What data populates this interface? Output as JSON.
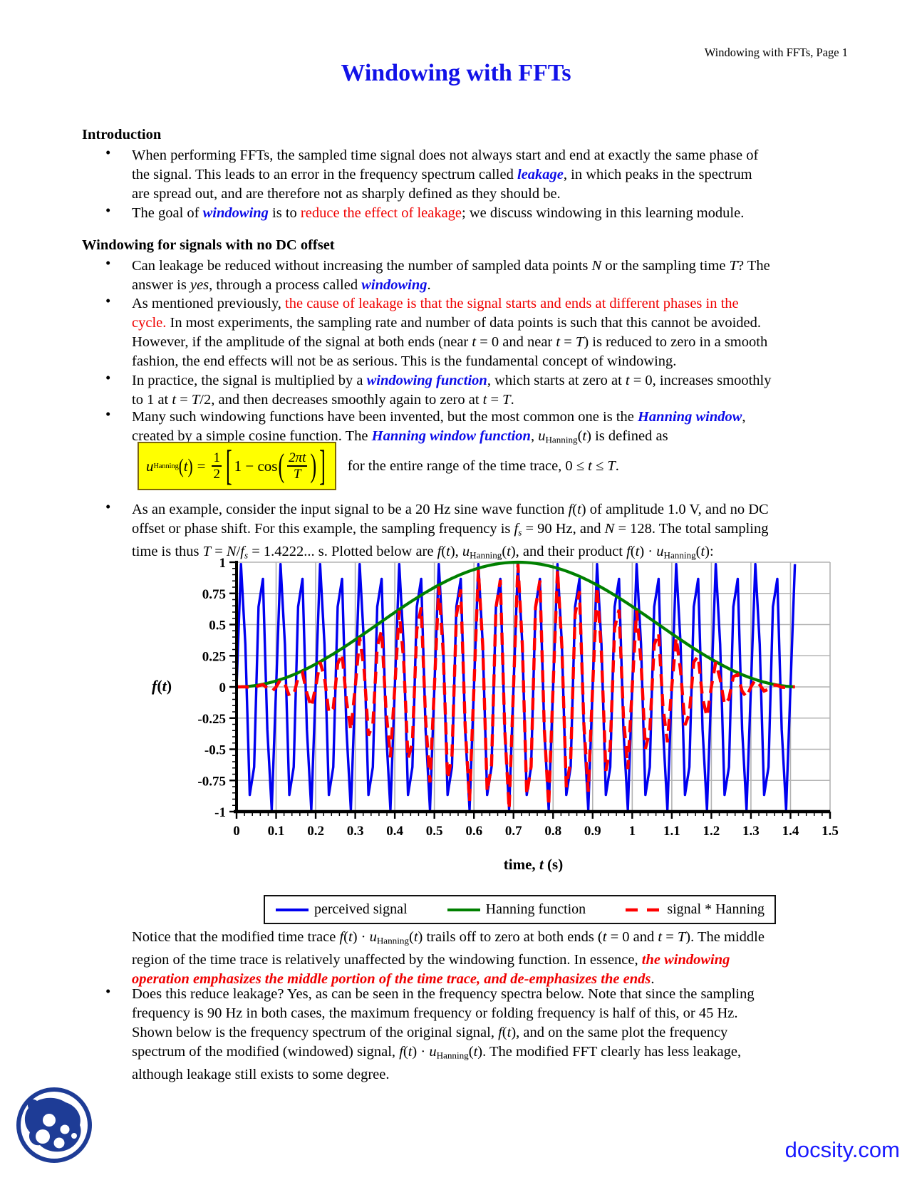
{
  "meta": {
    "bullet_char": "•",
    "accent_blue": "#0c0ce8",
    "accent_red": "#f00000",
    "highlight_yellow": "#ffff00",
    "logo_blue": "#1e3c96"
  },
  "header": {
    "text": "Windowing with FFTs, Page 1"
  },
  "title": "Windowing with FFTs",
  "sections": [
    {
      "heading": "Introduction",
      "bullets": [
        [
          [
            "When performing FFTs, the sampled time signal does not always start and end at exactly the same phase of",
            "n"
          ],
          [
            "",
            "br"
          ],
          [
            "the signal. This leads to an error in the frequency spectrum called ",
            "n"
          ],
          [
            "leakage",
            "v"
          ],
          [
            ", in which peaks in the spectrum",
            "n"
          ],
          [
            "",
            "br"
          ],
          [
            "are spread out, and are therefore not as sharply defined as they should be.",
            "n"
          ]
        ],
        [
          [
            "The goal of ",
            "n"
          ],
          [
            "windowing",
            "v"
          ],
          [
            " is to ",
            "n"
          ],
          [
            "reduce the effect of leakage",
            "r"
          ],
          [
            "; we discuss windowing in this learning module.",
            "n"
          ]
        ]
      ]
    },
    {
      "heading": "Windowing for signals with no DC offset",
      "bullets": [
        [
          [
            "Can leakage be reduced without increasing the number of sampled data points ",
            "n"
          ],
          [
            "N",
            "i"
          ],
          [
            " or the sampling time ",
            "n"
          ],
          [
            "T",
            "i"
          ],
          [
            "? The",
            "n"
          ],
          [
            "",
            "br"
          ],
          [
            "answer is ",
            "n"
          ],
          [
            "yes",
            "i"
          ],
          [
            ", through a process called ",
            "n"
          ],
          [
            "windowing",
            "v"
          ],
          [
            ".",
            "n"
          ]
        ],
        [
          [
            "As mentioned previously, ",
            "n"
          ],
          [
            "the cause of leakage is that the signal starts and ends at different phases in the",
            "r"
          ],
          [
            "",
            "br"
          ],
          [
            "cycle.",
            "r"
          ],
          [
            " In most experiments, the sampling rate and number of data points is such that this cannot be avoided.",
            "n"
          ],
          [
            "",
            "br"
          ],
          [
            "However, if the amplitude of the signal at both ends (near ",
            "n"
          ],
          [
            "t",
            "i"
          ],
          [
            " = 0 and near ",
            "n"
          ],
          [
            "t",
            "i"
          ],
          [
            " = ",
            "n"
          ],
          [
            "T",
            "i"
          ],
          [
            ") is reduced to zero in a smooth",
            "n"
          ],
          [
            "",
            "br"
          ],
          [
            "fashion, the end effects will not be as serious. This is the fundamental concept of windowing.",
            "n"
          ]
        ],
        [
          [
            "In practice, the signal is multiplied by a ",
            "n"
          ],
          [
            "windowing function",
            "v"
          ],
          [
            ", which starts at zero at ",
            "n"
          ],
          [
            "t",
            "i"
          ],
          [
            " = 0, increases smoothly",
            "n"
          ],
          [
            "",
            "br"
          ],
          [
            "to 1 at ",
            "n"
          ],
          [
            "t",
            "i"
          ],
          [
            " = ",
            "n"
          ],
          [
            "T",
            "i"
          ],
          [
            "/2, and then decreases smoothly again to zero at ",
            "n"
          ],
          [
            "t",
            "i"
          ],
          [
            " = ",
            "n"
          ],
          [
            "T",
            "i"
          ],
          [
            ".",
            "n"
          ]
        ],
        [
          [
            "Many such windowing functions have been invented, but the most common one is the ",
            "n"
          ],
          [
            "Hanning window",
            "v"
          ],
          [
            ",",
            "n"
          ],
          [
            "",
            "br"
          ],
          [
            "created by a simple cosine function. The ",
            "n"
          ],
          [
            "Hanning window function",
            "v"
          ],
          [
            ", ",
            "n"
          ],
          [
            "u",
            "i"
          ],
          [
            "Hanning",
            "s"
          ],
          [
            "(",
            "n"
          ],
          [
            "t",
            "i"
          ],
          [
            ") is defined as",
            "n"
          ]
        ]
      ]
    }
  ],
  "formula": {
    "var": "u",
    "sub": "Hanning",
    "lparen_arg": "(",
    "arg": "t",
    "rparen_arg": ")",
    "equals": "=",
    "num1": "1",
    "den1": "2",
    "lbracket": "[",
    "one_minus_cos": "1 − cos",
    "lparen": "(",
    "num2": "2πt",
    "den2": "T",
    "rparen": ")",
    "rbracket": "]",
    "side_runs": [
      [
        "for the entire range of the time trace, 0 ≤ ",
        "n"
      ],
      [
        "t",
        "i"
      ],
      [
        " ≤ ",
        "n"
      ],
      [
        "T",
        "i"
      ],
      [
        ".",
        "n"
      ]
    ]
  },
  "example_bullet": [
    [
      "As an example, consider the input signal to be a 20 Hz sine wave function ",
      "n"
    ],
    [
      "f",
      "i"
    ],
    [
      "(",
      "n"
    ],
    [
      "t",
      "i"
    ],
    [
      ") of amplitude 1.0 V, and no DC",
      "n"
    ],
    [
      "",
      "br"
    ],
    [
      "offset or phase shift. For this example, the sampling frequency is ",
      "n"
    ],
    [
      "f",
      "i"
    ],
    [
      "s",
      "si"
    ],
    [
      " = 90 Hz, and ",
      "n"
    ],
    [
      "N",
      "i"
    ],
    [
      " = 128. The total sampling",
      "n"
    ],
    [
      "",
      "br"
    ],
    [
      "time is thus ",
      "n"
    ],
    [
      "T",
      "i"
    ],
    [
      " = ",
      "n"
    ],
    [
      "N",
      "i"
    ],
    [
      "/",
      "n"
    ],
    [
      "f",
      "i"
    ],
    [
      "s",
      "si"
    ],
    [
      " = 1.4222... s. Plotted below are ",
      "n"
    ],
    [
      "f",
      "i"
    ],
    [
      "(",
      "n"
    ],
    [
      "t",
      "i"
    ],
    [
      "), ",
      "n"
    ],
    [
      "u",
      "i"
    ],
    [
      "Hanning",
      "s"
    ],
    [
      "(",
      "n"
    ],
    [
      "t",
      "i"
    ],
    [
      "), and their product ",
      "n"
    ],
    [
      "f",
      "i"
    ],
    [
      "(",
      "n"
    ],
    [
      "t",
      "i"
    ],
    [
      ") · ",
      "n"
    ],
    [
      "u",
      "i"
    ],
    [
      "Hanning",
      "s"
    ],
    [
      "(",
      "n"
    ],
    [
      "t",
      "i"
    ],
    [
      "):",
      "n"
    ]
  ],
  "chart_data": {
    "type": "line",
    "xlabel_runs": [
      [
        "time, ",
        "b"
      ],
      [
        "t",
        "bi"
      ],
      [
        " (s)",
        "b"
      ]
    ],
    "ylabel_runs": [
      [
        "f",
        "bi"
      ],
      [
        "(",
        "b"
      ],
      [
        "t",
        "bi"
      ],
      [
        ")",
        "b"
      ]
    ],
    "x_range": [
      0,
      1.5
    ],
    "y_range": [
      -1,
      1
    ],
    "x_major_step": 0.1,
    "x_minor_step": 0.02,
    "y_major_step": 0.25,
    "y_minor_step": 0.05,
    "x_tick_labels": [
      "0",
      "0.1",
      "0.2",
      "0.3",
      "0.4",
      "0.5",
      "0.6",
      "0.7",
      "0.8",
      "0.9",
      "1",
      "1.1",
      "1.2",
      "1.3",
      "1.4",
      "1.5"
    ],
    "y_tick_labels": [
      "1",
      "0.75",
      "0.5",
      "0.25",
      "0",
      "-0.25",
      "-0.5",
      "-0.75",
      "-1"
    ],
    "grid": true,
    "grid_color": "#b3b3b3",
    "signal_freq_hz": 20,
    "amplitude_v": 1.0,
    "sampling_freq_hz": 90,
    "n_samples": 128,
    "total_time_s": 1.4222,
    "series": [
      {
        "name": "perceived signal",
        "color": "#0000f0",
        "style": "solid",
        "definition": "f(ti) = sin(2*pi*20*ti), ti = i/90, i = 0..127, linear interpolation between samples"
      },
      {
        "name": "Hanning function",
        "color": "#008000",
        "style": "solid",
        "definition": "u(t) = 0.5*(1 - cos(2*pi*t/T)), T = N/fs = 1.4222 s"
      },
      {
        "name": "signal * Hanning",
        "color": "#ff0000",
        "style": "dashed",
        "definition": "product f(t)*u(t)"
      }
    ],
    "legend_position": "bottom"
  },
  "legend": {
    "items": [
      {
        "label": "perceived signal",
        "color": "#0000f0",
        "dash": "solid"
      },
      {
        "label": "Hanning function",
        "color": "#008000",
        "dash": "solid"
      },
      {
        "label": "signal * Hanning",
        "color": "#ff0000",
        "dash": "dashed"
      }
    ]
  },
  "notice_paragraph": [
    [
      "Notice that the modified time trace ",
      "n"
    ],
    [
      "f",
      "i"
    ],
    [
      "(",
      "n"
    ],
    [
      "t",
      "i"
    ],
    [
      ") · ",
      "n"
    ],
    [
      "u",
      "i"
    ],
    [
      "Hanning",
      "s"
    ],
    [
      "(",
      "n"
    ],
    [
      "t",
      "i"
    ],
    [
      ") trails off to zero at both ends (",
      "n"
    ],
    [
      "t",
      "i"
    ],
    [
      " = 0 and ",
      "n"
    ],
    [
      "t",
      "i"
    ],
    [
      " = ",
      "n"
    ],
    [
      "T",
      "i"
    ],
    [
      "). The middle",
      "n"
    ],
    [
      "",
      "br"
    ],
    [
      "region of the time trace is relatively unaffected by the windowing function. In essence, ",
      "n"
    ],
    [
      "the windowing",
      "rb"
    ],
    [
      "",
      "br"
    ],
    [
      "operation emphasizes the middle portion of the time trace, and de-emphasizes the ends",
      "rb"
    ],
    [
      ".",
      "n"
    ]
  ],
  "final_bullet": [
    [
      "Does this reduce leakage? Yes, as can be seen in the frequency spectra below. Note that since the sampling",
      "n"
    ],
    [
      "",
      "br"
    ],
    [
      "frequency is 90 Hz in both cases, the maximum frequency or folding frequency is half of this, or 45 Hz.",
      "n"
    ],
    [
      "",
      "br"
    ],
    [
      "Shown below is the frequency spectrum of the original signal, ",
      "n"
    ],
    [
      "f",
      "i"
    ],
    [
      "(",
      "n"
    ],
    [
      "t",
      "i"
    ],
    [
      "), and on the same plot the frequency",
      "n"
    ],
    [
      "",
      "br"
    ],
    [
      "spectrum of the modified (windowed) signal, ",
      "n"
    ],
    [
      "f",
      "i"
    ],
    [
      "(",
      "n"
    ],
    [
      "t",
      "i"
    ],
    [
      ") · ",
      "n"
    ],
    [
      "u",
      "i"
    ],
    [
      "Hanning",
      "s"
    ],
    [
      "(",
      "n"
    ],
    [
      "t",
      "i"
    ],
    [
      "). The modified FFT clearly has less leakage,",
      "n"
    ],
    [
      "",
      "br"
    ],
    [
      "although leakage still exists to some degree.",
      "n"
    ]
  ],
  "footer": {
    "brand": "docsity.com"
  }
}
